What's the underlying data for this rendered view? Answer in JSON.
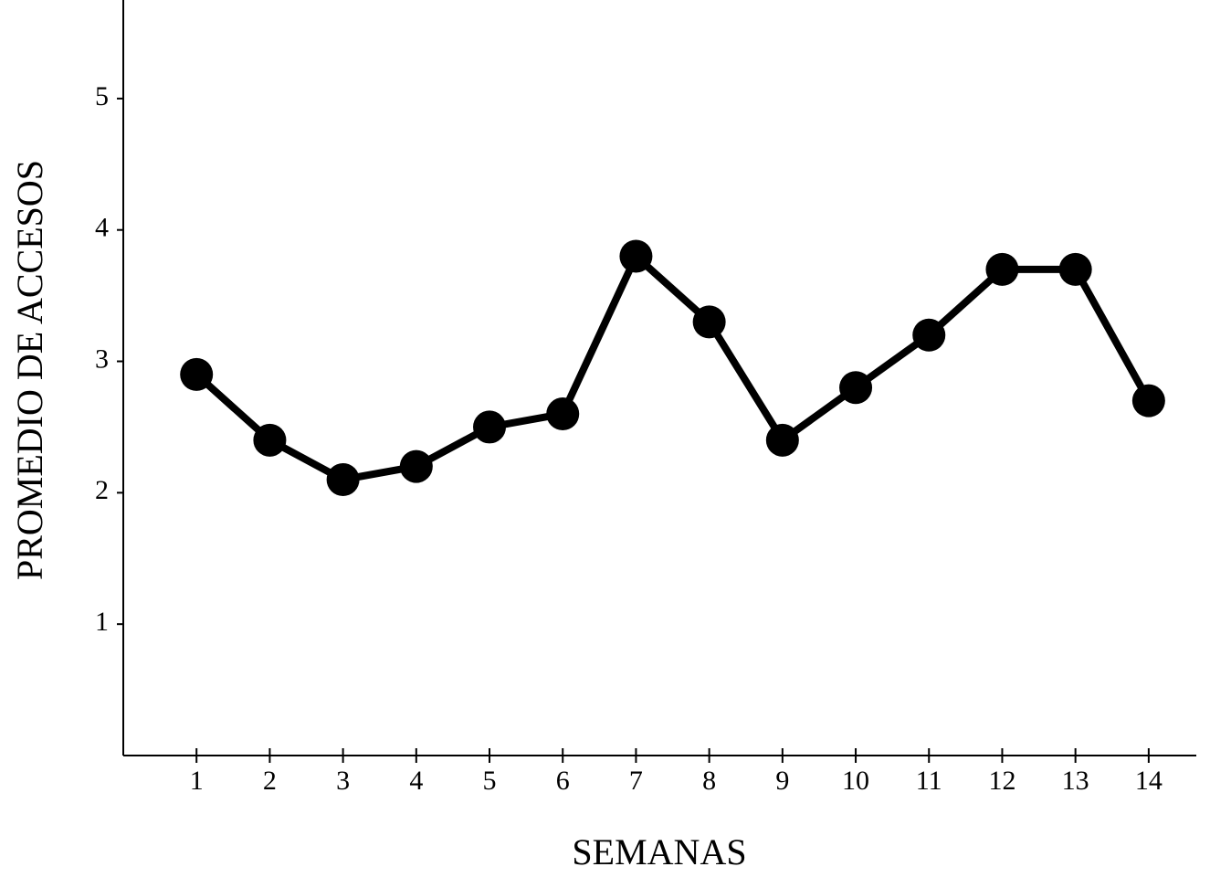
{
  "chart_data": {
    "type": "line",
    "x_label": "SEMANAS",
    "y_label": "PROMEDIO DE ACCESOS",
    "x": [
      1,
      2,
      3,
      4,
      5,
      6,
      7,
      8,
      9,
      10,
      11,
      12,
      13,
      14
    ],
    "series": [
      {
        "color": "#000000",
        "values": [
          2.9,
          2.4,
          2.1,
          2.2,
          2.5,
          2.6,
          3.8,
          3.3,
          2.4,
          2.8,
          3.2,
          3.7,
          3.7,
          2.7
        ]
      }
    ],
    "xlim": [
      0,
      14.65
    ],
    "xticks": [
      1,
      2,
      3,
      4,
      5,
      6,
      7,
      8,
      9,
      10,
      11,
      12,
      13,
      14
    ],
    "ylim": [
      0,
      5.75
    ],
    "yticks": [
      1,
      2,
      3,
      4,
      5
    ],
    "grid": false
  }
}
